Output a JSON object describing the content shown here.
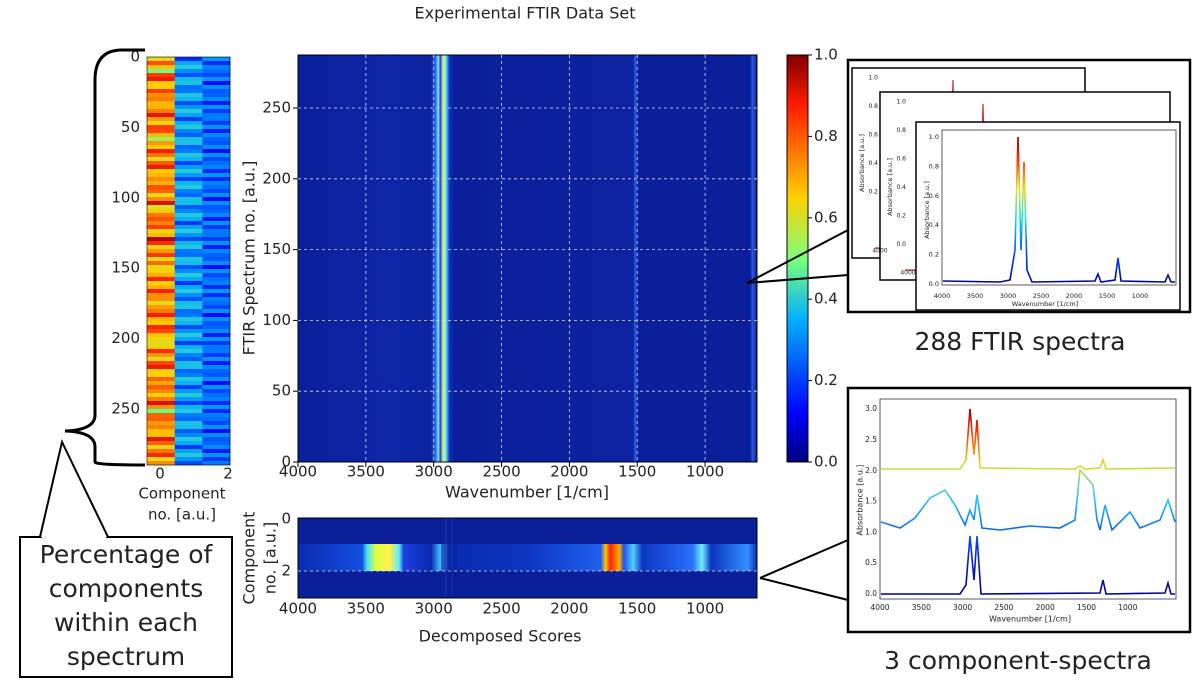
{
  "title": "Experimental FTIR Data Set",
  "strip": {
    "yticks": [
      "0",
      "50",
      "100",
      "150",
      "200",
      "250"
    ],
    "xticks": [
      "0",
      "2"
    ],
    "xlabel": [
      "Component",
      "no. [a.u.]"
    ]
  },
  "callout": {
    "lines": [
      "Percentage of",
      "components",
      "within each",
      "spectrum"
    ]
  },
  "heatmap": {
    "xticks": [
      "4000",
      "3500",
      "3000",
      "2500",
      "2000",
      "1500",
      "1000"
    ],
    "yticks": [
      "0",
      "50",
      "100",
      "150",
      "200",
      "250"
    ],
    "xlabel": "Wavenumber [1/cm]",
    "ylabel": "FTIR Spectrum no. [a.u.]"
  },
  "colorbar": {
    "ticks": [
      "0.0",
      "0.2",
      "0.4",
      "0.6",
      "0.8",
      "1.0"
    ]
  },
  "scores": {
    "yticks": [
      "0",
      "2"
    ],
    "xticks": [
      "4000",
      "3500",
      "3000",
      "2500",
      "2000",
      "1500",
      "1000"
    ],
    "xlabel": "Decomposed Scores",
    "ylabel": [
      "Component",
      "no. [a.u.]"
    ]
  },
  "spectra_panel": {
    "caption": "288 FTIR spectra",
    "back": [
      {
        "yticks": [
          "1.0",
          "0.8",
          "0.6",
          "0.4",
          "0.2"
        ],
        "xtick": "4000",
        "ylabel": "Absorbance [a.u.]"
      },
      {
        "yticks": [
          "1.0",
          "0.8",
          "0.6",
          "0.4",
          "0.2",
          "0.0"
        ],
        "xtick": "4000",
        "ylabel": "Absorbance [a.u.]"
      }
    ],
    "front": {
      "yticks": [
        "0.0",
        "0.2",
        "0.4",
        "0.6",
        "0.8",
        "1.0"
      ],
      "xticks": [
        "4000",
        "3500",
        "3000",
        "2500",
        "2000",
        "1500",
        "1000"
      ],
      "xlabel": "Wavenumber [1/cm]",
      "ylabel": "Absorbance [a.u.]"
    }
  },
  "components_panel": {
    "caption": "3 component-spectra",
    "yticks": [
      "0.0",
      "0.5",
      "1.0",
      "1.5",
      "2.0",
      "2.5",
      "3.0"
    ],
    "xticks": [
      "4000",
      "3500",
      "3000",
      "2500",
      "2000",
      "1500",
      "1000"
    ],
    "xlabel": "Wavenumber [1/cm]",
    "ylabel": "Absorbance [a.u.]"
  }
}
